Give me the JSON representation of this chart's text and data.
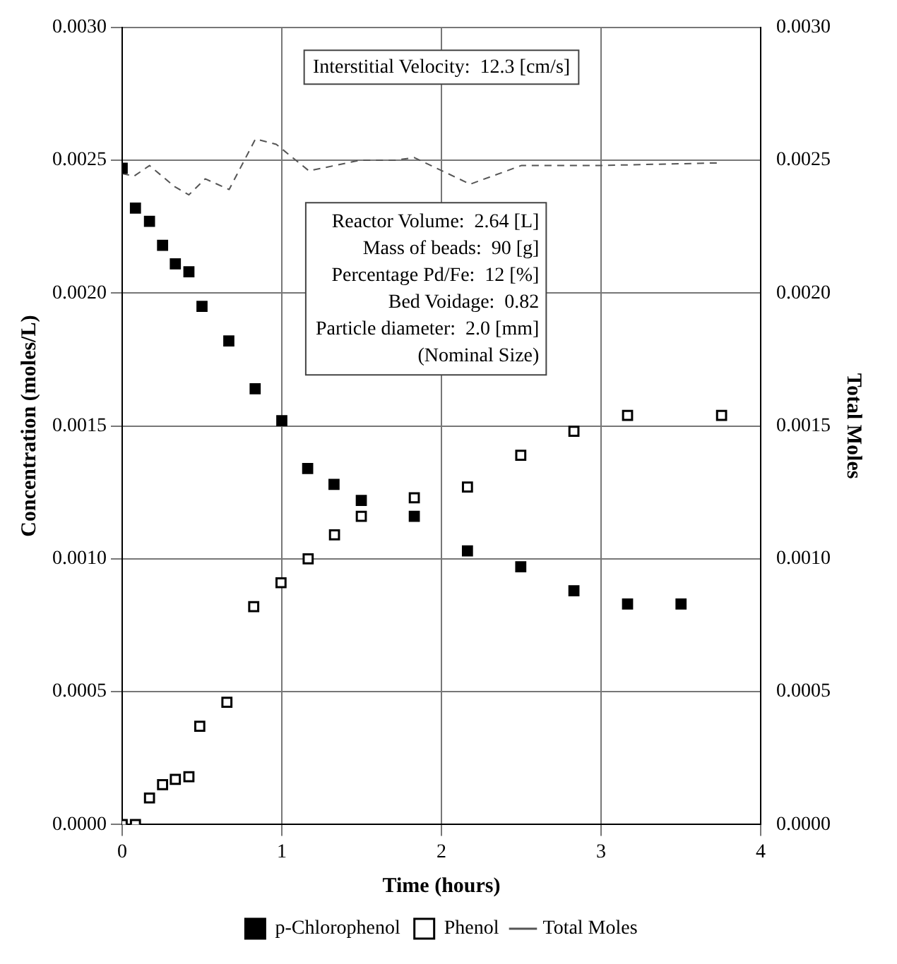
{
  "chart_data": {
    "type": "scatter",
    "xlabel": "Time (hours)",
    "ylabel": "Concentration (moles/L)",
    "y2label": "Total Moles",
    "xlim": [
      0,
      4
    ],
    "xticks": [
      0,
      1,
      2,
      3,
      4
    ],
    "ylim": [
      0,
      0.003
    ],
    "yticks": [
      {
        "value": 0,
        "label": "0.0000"
      },
      {
        "value": 0.0005,
        "label": "0.0005"
      },
      {
        "value": 0.001,
        "label": "0.0010"
      },
      {
        "value": 0.0015,
        "label": "0.0015"
      },
      {
        "value": 0.002,
        "label": "0.0020"
      },
      {
        "value": 0.0025,
        "label": "0.0025"
      },
      {
        "value": 0.003,
        "label": "0.0030"
      }
    ],
    "y2lim": [
      0,
      0.003
    ],
    "y2ticks": [
      {
        "value": 0,
        "label": "0.0000"
      },
      {
        "value": 0.0005,
        "label": "0.0005"
      },
      {
        "value": 0.001,
        "label": "0.0010"
      },
      {
        "value": 0.0015,
        "label": "0.0015"
      },
      {
        "value": 0.002,
        "label": "0.0020"
      },
      {
        "value": 0.0025,
        "label": "0.0025"
      },
      {
        "value": 0.003,
        "label": "0.0030"
      }
    ],
    "grid": true,
    "legend": "bottom",
    "series": [
      {
        "name": "p-Chlorophenol",
        "type": "scatter",
        "marker": "square",
        "color": "#000000",
        "x": [
          0,
          0.083,
          0.171,
          0.253,
          0.333,
          0.418,
          0.5,
          0.668,
          0.833,
          1.0,
          1.162,
          1.327,
          1.498,
          1.83,
          2.163,
          2.497,
          2.83,
          3.166,
          3.501
        ],
        "values": [
          0.00247,
          0.00232,
          0.00227,
          0.00218,
          0.00211,
          0.00208,
          0.00195,
          0.00182,
          0.00164,
          0.00152,
          0.00134,
          0.00128,
          0.00122,
          0.00116,
          0.00103,
          0.00097,
          0.00088,
          0.00083,
          0.00083
        ]
      },
      {
        "name": "Phenol",
        "type": "scatter",
        "marker": "square",
        "color": "#ffffff",
        "x": [
          0,
          0.083,
          0.171,
          0.253,
          0.333,
          0.418,
          0.486,
          0.656,
          0.824,
          0.995,
          1.165,
          1.33,
          1.498,
          1.83,
          2.163,
          2.497,
          2.83,
          3.166,
          3.755
        ],
        "values": [
          0,
          0,
          0.0001,
          0.00015,
          0.00017,
          0.00018,
          0.00037,
          0.00046,
          0.00082,
          0.00091,
          0.001,
          0.00109,
          0.00116,
          0.00123,
          0.00127,
          0.00139,
          0.00148,
          0.00154,
          0.00154
        ]
      },
      {
        "name": "Total Moles",
        "type": "line",
        "axis": "y2",
        "marker": "none",
        "line_style": "dashed",
        "color": "#555555",
        "x": [
          0,
          0.074,
          0.171,
          0.33,
          0.418,
          0.52,
          0.67,
          0.835,
          0.965,
          1.17,
          1.49,
          1.71,
          1.83,
          2.18,
          2.5,
          2.97,
          3.74
        ],
        "values": [
          0.00245,
          0.00244,
          0.00248,
          0.0024,
          0.00237,
          0.00243,
          0.00239,
          0.00258,
          0.00256,
          0.00246,
          0.0025,
          0.0025,
          0.00251,
          0.00241,
          0.00248,
          0.00248,
          0.00249
        ]
      }
    ],
    "annotations": [
      "Interstitial Velocity:  12.3 [cm/s]",
      "Reactor Volume:  2.64 [L]",
      "Mass of beads:  90 [g]",
      "Percentage Pd/Fe:  12 [%]",
      "Bed Voidage:  0.82",
      "Particle diameter:  2.0 [mm]",
      "(Nominal Size)"
    ]
  }
}
